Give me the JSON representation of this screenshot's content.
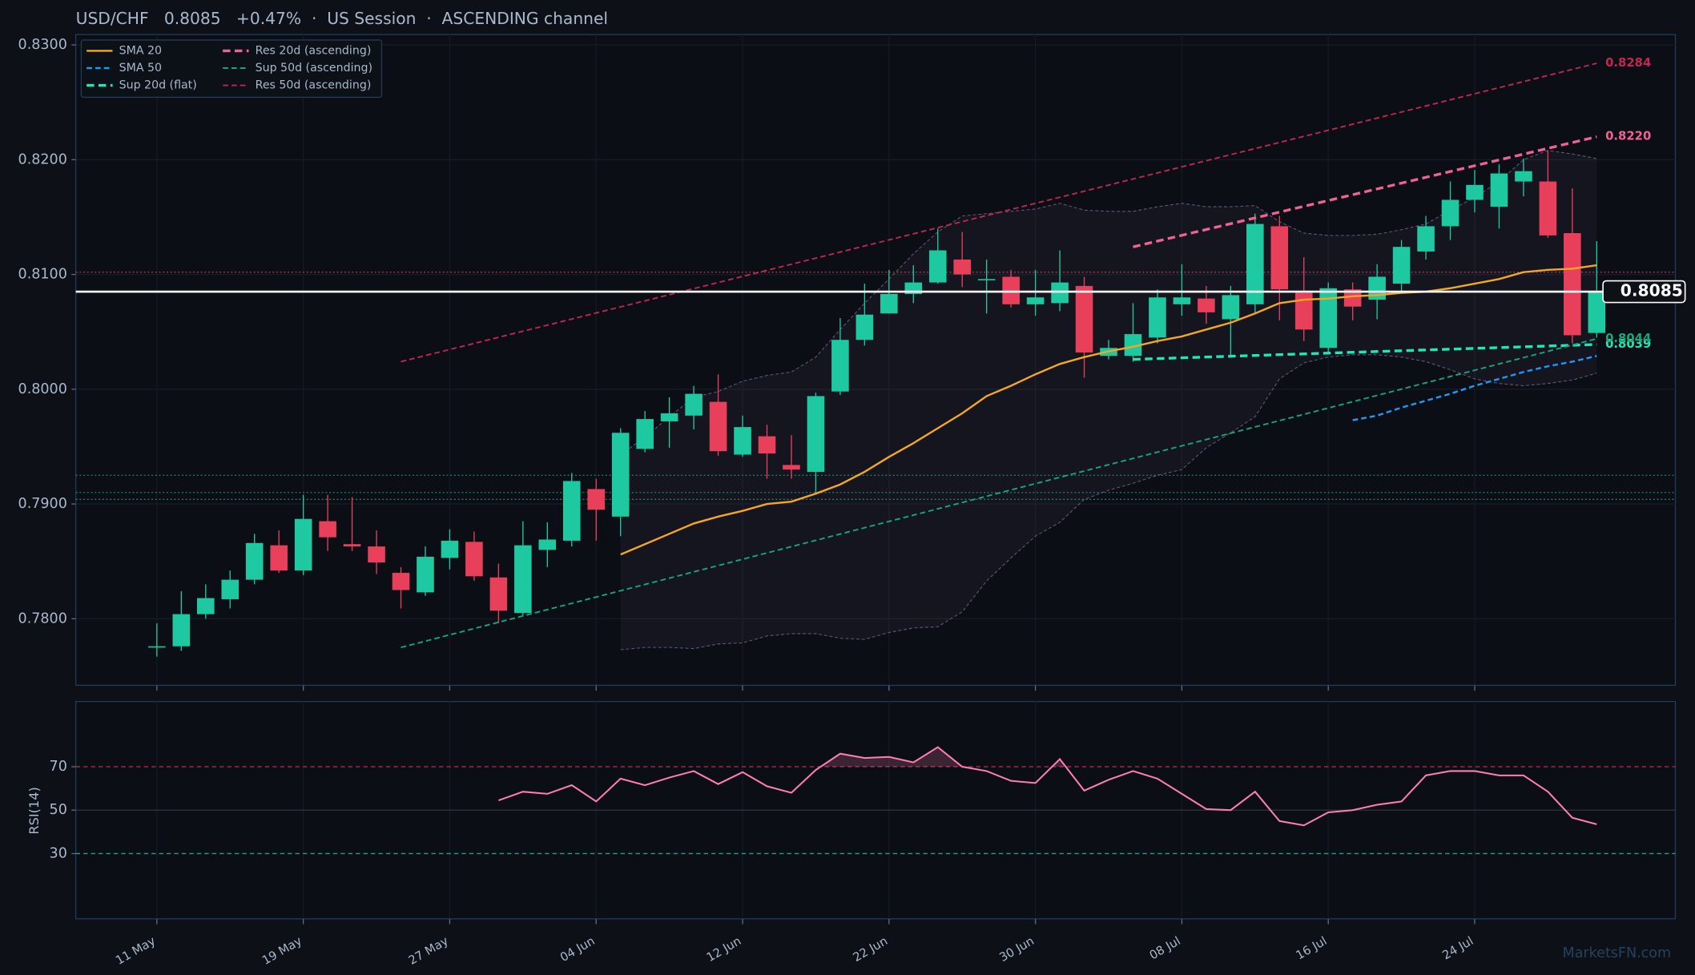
{
  "chart_data": {
    "type": "candlestick",
    "title": "USD/CHF   0.8085   +0.47%  ·  US Session  ·  ASCENDING channel",
    "categories": [
      "11 May",
      null,
      null,
      null,
      null,
      null,
      "19 May",
      null,
      null,
      null,
      null,
      null,
      "27 May",
      null,
      null,
      null,
      null,
      null,
      "04 Jun",
      null,
      null,
      null,
      null,
      null,
      "12 Jun",
      null,
      null,
      null,
      null,
      null,
      "22 Jun",
      null,
      null,
      null,
      null,
      null,
      "30 Jun",
      null,
      null,
      null,
      null,
      null,
      "08 Jul",
      null,
      null,
      null,
      null,
      null,
      "16 Jul",
      null,
      null,
      null,
      null,
      null,
      "24 Jul",
      null,
      null,
      null,
      null,
      null
    ],
    "open": [
      0.7776,
      0.7776,
      0.7804,
      0.7817,
      0.7834,
      0.7864,
      0.7842,
      0.7885,
      0.7865,
      0.7863,
      0.784,
      0.7823,
      0.7853,
      0.7867,
      0.7836,
      0.7805,
      0.786,
      0.7868,
      0.7913,
      0.7889,
      0.7948,
      0.7972,
      0.7977,
      0.7989,
      0.7943,
      0.7959,
      0.7934,
      0.7928,
      0.7998,
      0.8043,
      0.8066,
      0.8083,
      0.8093,
      0.8113,
      0.8096,
      0.8098,
      0.8074,
      0.8075,
      0.809,
      0.8029,
      0.8029,
      0.8045,
      0.8074,
      0.8079,
      0.8061,
      0.8074,
      0.8142,
      0.8084,
      0.8036,
      0.8087,
      0.8078,
      0.8092,
      0.812,
      0.8142,
      0.8165,
      0.8159,
      0.8181,
      0.8181,
      0.8136,
      0.8049
    ],
    "high": [
      0.7796,
      0.7824,
      0.783,
      0.7842,
      0.7874,
      0.7877,
      0.7908,
      0.7908,
      0.7906,
      0.7877,
      0.7845,
      0.7863,
      0.7878,
      0.7876,
      0.7848,
      0.7885,
      0.7884,
      0.7927,
      0.7922,
      0.7966,
      0.7981,
      0.7993,
      0.8003,
      0.8013,
      0.7977,
      0.7969,
      0.796,
      0.7997,
      0.8062,
      0.8092,
      0.8104,
      0.8108,
      0.814,
      0.8137,
      0.8113,
      0.8104,
      0.8104,
      0.8121,
      0.8098,
      0.8043,
      0.8075,
      0.8087,
      0.8109,
      0.809,
      0.809,
      0.8153,
      0.8151,
      0.8115,
      0.8093,
      0.8093,
      0.8109,
      0.813,
      0.8151,
      0.8181,
      0.8191,
      0.8196,
      0.8201,
      0.8208,
      0.8175,
      0.8129
    ],
    "low": [
      0.7767,
      0.7772,
      0.78,
      0.7809,
      0.783,
      0.784,
      0.7838,
      0.7859,
      0.7859,
      0.7839,
      0.7809,
      0.782,
      0.7843,
      0.7833,
      0.7796,
      0.7803,
      0.7845,
      0.7863,
      0.7868,
      0.7872,
      0.7945,
      0.7949,
      0.7965,
      0.7942,
      0.7941,
      0.7922,
      0.7922,
      0.791,
      0.7995,
      0.8038,
      0.8066,
      0.8075,
      0.8092,
      0.8089,
      0.8066,
      0.8071,
      0.8064,
      0.8068,
      0.801,
      0.8026,
      0.8024,
      0.804,
      0.8064,
      0.8057,
      0.8029,
      0.8066,
      0.806,
      0.8042,
      0.8032,
      0.806,
      0.8061,
      0.8085,
      0.8113,
      0.813,
      0.8154,
      0.814,
      0.8168,
      0.8132,
      0.804,
      0.8045
    ],
    "close": [
      0.7776,
      0.7804,
      0.7818,
      0.7834,
      0.7866,
      0.7842,
      0.7887,
      0.7871,
      0.7863,
      0.7849,
      0.7825,
      0.7854,
      0.7868,
      0.7837,
      0.7807,
      0.7864,
      0.7869,
      0.792,
      0.7895,
      0.7962,
      0.7974,
      0.7979,
      0.7996,
      0.7946,
      0.7967,
      0.7944,
      0.793,
      0.7994,
      0.8043,
      0.8065,
      0.8083,
      0.8093,
      0.8121,
      0.81,
      0.8096,
      0.8074,
      0.808,
      0.8093,
      0.8032,
      0.8036,
      0.8048,
      0.808,
      0.808,
      0.8067,
      0.8082,
      0.8144,
      0.8087,
      0.8052,
      0.8088,
      0.8072,
      0.8098,
      0.8124,
      0.8142,
      0.8165,
      0.8178,
      0.8188,
      0.819,
      0.8134,
      0.8047,
      0.8085
    ],
    "up_color": "#1ec8a0",
    "down_color": "#e8405a",
    "series": [
      {
        "name": "SMA 20",
        "color": "#f5a623",
        "style": "solid",
        "width": 1.8,
        "values": [
          null,
          null,
          null,
          null,
          null,
          null,
          null,
          null,
          null,
          null,
          null,
          null,
          null,
          null,
          null,
          null,
          null,
          null,
          null,
          0.7856,
          0.7865,
          0.7874,
          0.7883,
          0.7889,
          0.7894,
          0.79,
          0.7902,
          0.7909,
          0.7917,
          0.7928,
          0.7941,
          0.7953,
          0.7966,
          0.7979,
          0.7994,
          0.8003,
          0.8013,
          0.8022,
          0.8028,
          0.8033,
          0.8037,
          0.8042,
          0.8046,
          0.8052,
          0.8058,
          0.8066,
          0.8075,
          0.8078,
          0.8079,
          0.8081,
          0.8082,
          0.8084,
          0.8085,
          0.8088,
          0.8092,
          0.8096,
          0.8102,
          0.8104,
          0.8105,
          0.8108
        ]
      },
      {
        "name": "SMA 50",
        "color": "#2196f3",
        "style": "dashed",
        "width": 1.8,
        "values": [
          null,
          null,
          null,
          null,
          null,
          null,
          null,
          null,
          null,
          null,
          null,
          null,
          null,
          null,
          null,
          null,
          null,
          null,
          null,
          null,
          null,
          null,
          null,
          null,
          null,
          null,
          null,
          null,
          null,
          null,
          null,
          null,
          null,
          null,
          null,
          null,
          null,
          null,
          null,
          null,
          null,
          null,
          null,
          null,
          null,
          null,
          null,
          null,
          null,
          0.7973,
          0.7977,
          0.7984,
          0.799,
          0.7996,
          0.8003,
          0.8009,
          0.8015,
          0.802,
          0.8024,
          0.8029
        ]
      },
      {
        "name": "Sup 20d (flat)",
        "color": "#1de9b6",
        "style": "dashed",
        "width": 2.5,
        "x": [
          40,
          59
        ],
        "values": [
          0.8026,
          0.8039
        ],
        "value_label": "0.8039"
      },
      {
        "name": "Res 20d (ascending)",
        "color": "#f06292",
        "style": "dashed",
        "width": 2.5,
        "x": [
          40,
          59
        ],
        "values": [
          0.8124,
          0.822
        ],
        "value_label": "0.8220"
      },
      {
        "name": "Sup 50d (ascending)",
        "color": "#13a87a",
        "style": "dashed",
        "width": 1.4,
        "x": [
          10,
          59
        ],
        "values": [
          0.7775,
          0.8044
        ],
        "value_label": "0.8044"
      },
      {
        "name": "Res 50d (ascending)",
        "color": "#c2274f",
        "style": "dashed",
        "width": 1.4,
        "x": [
          10,
          59
        ],
        "values": [
          0.8024,
          0.8284
        ],
        "value_label": "0.8284"
      }
    ],
    "bands": {
      "color": "#8a6fa8",
      "upper": [
        null,
        null,
        null,
        null,
        null,
        null,
        null,
        null,
        null,
        null,
        null,
        null,
        null,
        null,
        null,
        null,
        null,
        null,
        null,
        0.7943,
        0.7958,
        0.7976,
        0.7993,
        0.7998,
        0.8007,
        0.8012,
        0.8015,
        0.8028,
        0.8052,
        0.8075,
        0.8096,
        0.8118,
        0.8137,
        0.8151,
        0.8153,
        0.8155,
        0.8157,
        0.8162,
        0.8156,
        0.8155,
        0.8155,
        0.8159,
        0.8162,
        0.8159,
        0.8159,
        0.816,
        0.8146,
        0.8136,
        0.8134,
        0.8134,
        0.8135,
        0.8139,
        0.8144,
        0.8156,
        0.8167,
        0.8181,
        0.82,
        0.8208,
        0.8205,
        0.8201
      ],
      "lower": [
        null,
        null,
        null,
        null,
        null,
        null,
        null,
        null,
        null,
        null,
        null,
        null,
        null,
        null,
        null,
        null,
        null,
        null,
        null,
        0.7773,
        0.7775,
        0.7775,
        0.7774,
        0.7778,
        0.7779,
        0.7785,
        0.7787,
        0.7787,
        0.7783,
        0.7782,
        0.7788,
        0.7792,
        0.7793,
        0.7806,
        0.7833,
        0.7853,
        0.7872,
        0.7884,
        0.7904,
        0.7912,
        0.7918,
        0.7925,
        0.793,
        0.7949,
        0.7962,
        0.7976,
        0.8009,
        0.8023,
        0.8028,
        0.803,
        0.803,
        0.8028,
        0.8024,
        0.8017,
        0.8009,
        0.8005,
        0.8003,
        0.8005,
        0.8008,
        0.8014
      ]
    },
    "last_price": {
      "value": 0.8085,
      "label": "0.8085",
      "color": "#ffffff"
    },
    "levels": [
      {
        "value": 0.8102,
        "color": "#b0344a"
      },
      {
        "value": 0.7925,
        "color": "#2a7d6a"
      },
      {
        "value": 0.791,
        "color": "#2a7d6a"
      },
      {
        "value": 0.7904,
        "color": "#2a7d6a"
      }
    ],
    "ylim": [
      0.7742,
      0.8309
    ],
    "yticks": [
      {
        "value": 0.78,
        "label": "0.7800"
      },
      {
        "value": 0.79,
        "label": "0.7900"
      },
      {
        "value": 0.8,
        "label": "0.8000"
      },
      {
        "value": 0.81,
        "label": "0.8100"
      },
      {
        "value": 0.82,
        "label": "0.8200"
      },
      {
        "value": 0.83,
        "label": "0.8300"
      }
    ],
    "grid": true,
    "legend": "upper left",
    "rsi": {
      "ylabel": "RSI(14)",
      "color": "#ff7eb3",
      "ylim": [
        0,
        100
      ],
      "yticks": [
        30,
        50,
        70
      ],
      "tick_colors": [
        "#2a9d8f",
        "#2e3644",
        "#b0344a"
      ],
      "overbought": 70,
      "values": [
        null,
        null,
        null,
        null,
        null,
        null,
        null,
        null,
        null,
        null,
        null,
        null,
        null,
        null,
        54.5,
        58.5,
        57.5,
        61.5,
        54,
        64.5,
        61.5,
        65,
        68,
        62,
        67.5,
        61,
        58,
        68.5,
        76,
        74,
        74.5,
        72,
        79,
        70,
        68,
        63.5,
        62.5,
        73.5,
        59,
        64,
        68,
        64.5,
        57.5,
        50.5,
        50,
        58.5,
        45,
        43,
        49,
        50,
        52.5,
        54,
        66,
        68,
        68,
        66,
        66,
        58.5,
        46.5,
        43.5
      ]
    },
    "watermark": "MarketsFN.com"
  }
}
